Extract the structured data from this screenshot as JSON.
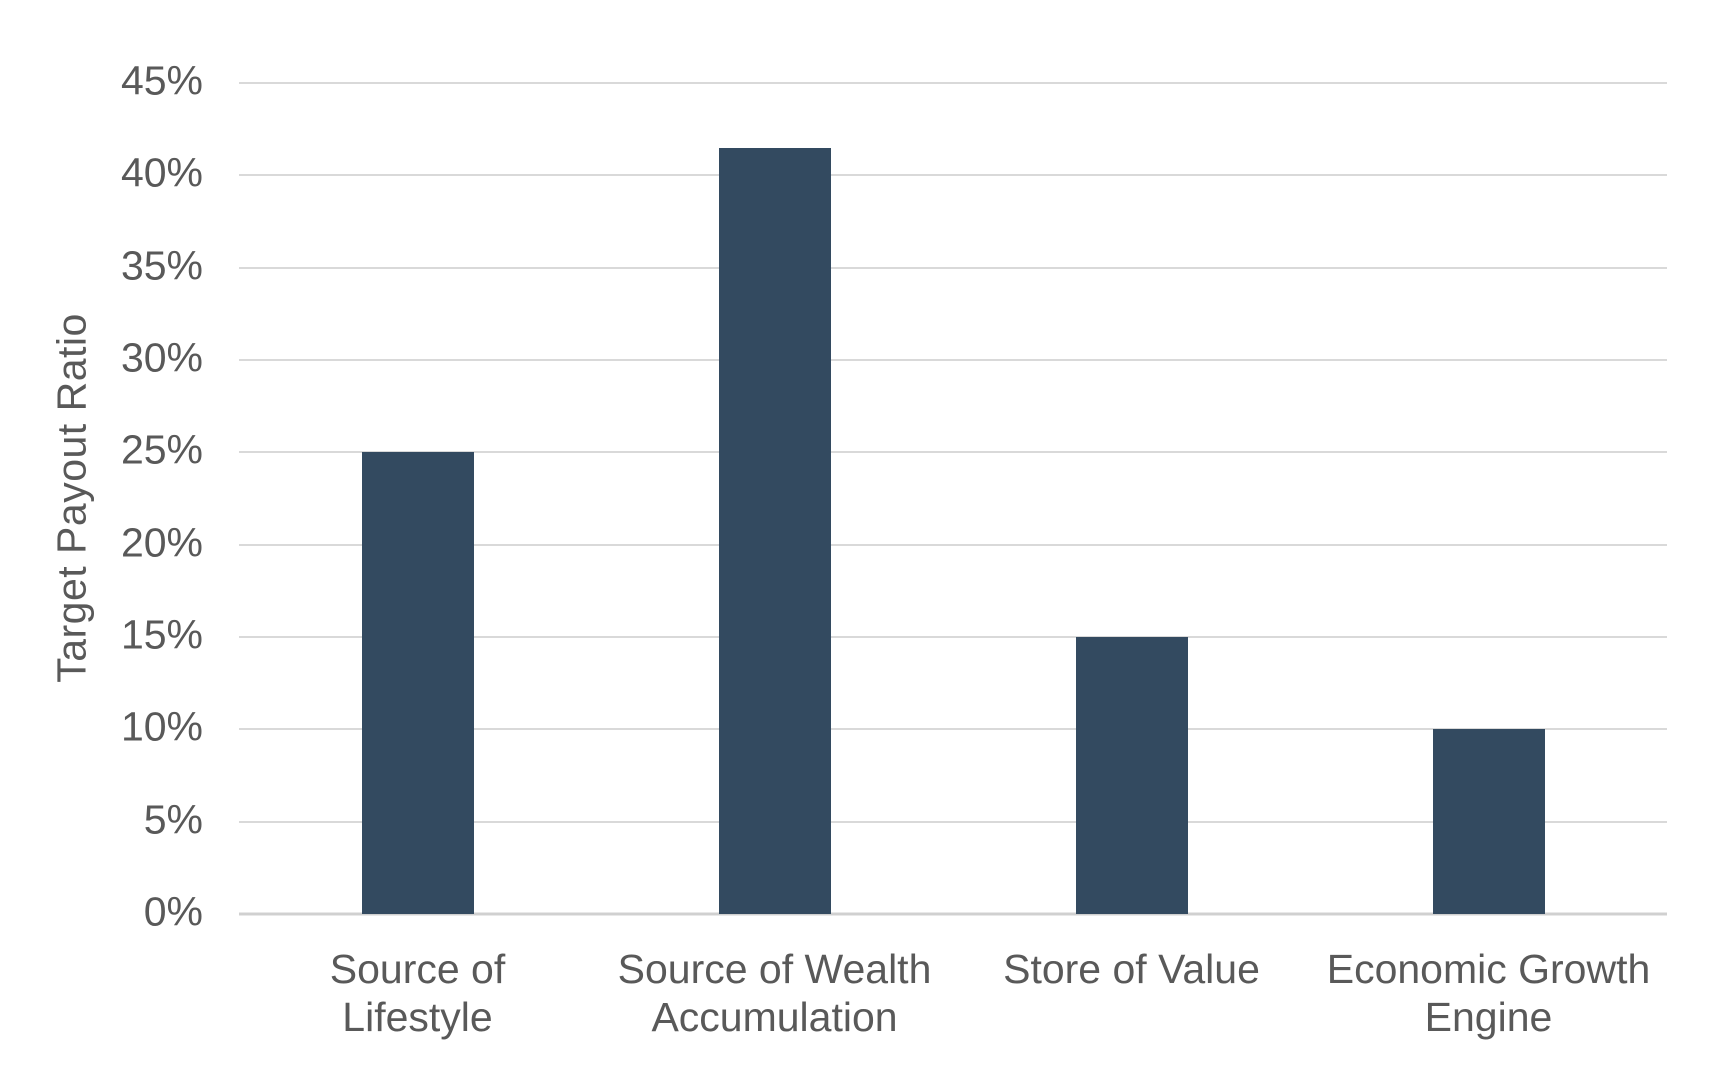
{
  "chart_data": {
    "type": "bar",
    "title": "",
    "xlabel": "",
    "ylabel": "Target Payout Ratio",
    "categories": [
      "Source of Lifestyle",
      "Source of Wealth Accumulation",
      "Store of Value",
      "Economic Growth Engine"
    ],
    "category_lines": [
      [
        "Source of",
        "Lifestyle"
      ],
      [
        "Source of Wealth",
        "Accumulation"
      ],
      [
        "Store of Value"
      ],
      [
        "Economic Growth",
        "Engine"
      ]
    ],
    "values": [
      25,
      41.5,
      15,
      10
    ],
    "ylim": [
      0,
      45
    ],
    "y_ticks": [
      {
        "value": 0,
        "label": "0%"
      },
      {
        "value": 5,
        "label": "5%"
      },
      {
        "value": 10,
        "label": "10%"
      },
      {
        "value": 15,
        "label": "15%"
      },
      {
        "value": 20,
        "label": "20%"
      },
      {
        "value": 25,
        "label": "25%"
      },
      {
        "value": 30,
        "label": "30%"
      },
      {
        "value": 35,
        "label": "35%"
      },
      {
        "value": 40,
        "label": "40%"
      },
      {
        "value": 45,
        "label": "45%"
      }
    ],
    "legend": "none",
    "grid": "horizontal",
    "colors": {
      "bar": "#334a60",
      "gridline": "#d9d9d9",
      "axis_line": "#d0d0d0",
      "text": "#595959",
      "background": "#ffffff"
    }
  }
}
